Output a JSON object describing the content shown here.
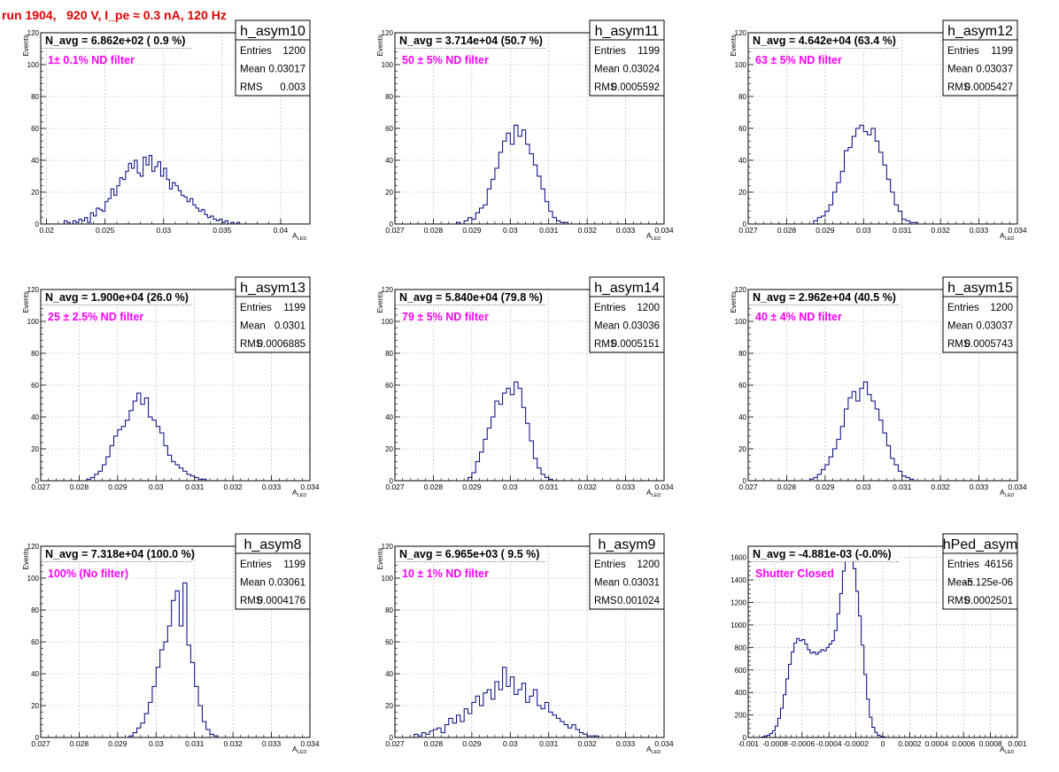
{
  "page": {
    "title": "run 1904,   920 V, I_pe ≈ 0.3 nA, 120 Hz",
    "title_color": "#e00000",
    "hist_color": "#000080",
    "note_color": "#ff00ff"
  },
  "chart_data": [
    {
      "type": "histogram",
      "name": "h_asym10",
      "headline": "N_avg = 6.862e+02 ( 0.9 %)",
      "note": "1± 0.1% ND filter",
      "stats": [
        [
          "Entries",
          "1200"
        ],
        [
          "Mean",
          "0.03017"
        ],
        [
          "RMS",
          "0.003"
        ]
      ],
      "xlabel": "A_LED",
      "ylabel": "Events",
      "xlim": [
        0.0195,
        0.0425
      ],
      "ylim": [
        0,
        120
      ],
      "xticks": [
        0.02,
        0.025,
        0.03,
        0.035,
        0.04
      ],
      "xticklabels": [
        "0.02",
        "0.025",
        "0.03",
        "0.035",
        "0.04"
      ],
      "yticks": [
        0,
        20,
        40,
        60,
        80,
        100,
        120
      ],
      "grid": true,
      "bins": {
        "start": 0.021,
        "width": 0.00025,
        "counts": [
          0,
          0,
          2,
          1,
          0,
          2,
          1,
          3,
          2,
          4,
          1,
          7,
          5,
          10,
          9,
          8,
          14,
          16,
          22,
          18,
          24,
          29,
          28,
          33,
          38,
          35,
          40,
          32,
          30,
          42,
          37,
          43,
          33,
          36,
          39,
          30,
          35,
          28,
          22,
          26,
          24,
          21,
          18,
          17,
          14,
          16,
          12,
          10,
          8,
          9,
          6,
          4,
          5,
          3,
          2,
          3,
          1,
          2,
          0,
          1,
          0,
          1
        ]
      }
    },
    {
      "type": "histogram",
      "name": "h_asym11",
      "headline": "N_avg = 3.714e+04 (50.7 %)",
      "note": "50 ± 5% ND filter",
      "stats": [
        [
          "Entries",
          "1199"
        ],
        [
          "Mean",
          "0.03024"
        ],
        [
          "RMS",
          "0.0005592"
        ]
      ],
      "xlabel": "A_LED",
      "ylabel": "Events",
      "xlim": [
        0.027,
        0.034
      ],
      "ylim": [
        0,
        120
      ],
      "xticks": [
        0.027,
        0.028,
        0.029,
        0.03,
        0.031,
        0.032,
        0.033,
        0.034
      ],
      "xticklabels": [
        "0.027",
        "0.028",
        "0.029",
        "0.03",
        "0.031",
        "0.032",
        "0.033",
        "0.034"
      ],
      "yticks": [
        0,
        20,
        40,
        60,
        80,
        100,
        120
      ],
      "grid": true,
      "bins": {
        "start": 0.0286,
        "width": 0.0001,
        "counts": [
          1,
          0,
          2,
          4,
          3,
          7,
          10,
          12,
          22,
          28,
          35,
          45,
          52,
          57,
          50,
          62,
          55,
          59,
          50,
          44,
          37,
          30,
          22,
          14,
          8,
          4,
          2,
          1,
          1
        ]
      }
    },
    {
      "type": "histogram",
      "name": "h_asym12",
      "headline": "N_avg = 4.642e+04 (63.4 %)",
      "note": "63 ± 5% ND filter",
      "stats": [
        [
          "Entries",
          "1199"
        ],
        [
          "Mean",
          "0.03037"
        ],
        [
          "RMS",
          "0.0005427"
        ]
      ],
      "xlabel": "A_LED",
      "ylabel": "Events",
      "xlim": [
        0.027,
        0.034
      ],
      "ylim": [
        0,
        120
      ],
      "xticks": [
        0.027,
        0.028,
        0.029,
        0.03,
        0.031,
        0.032,
        0.033,
        0.034
      ],
      "xticklabels": [
        "0.027",
        "0.028",
        "0.029",
        "0.03",
        "0.031",
        "0.032",
        "0.033",
        "0.034"
      ],
      "yticks": [
        0,
        20,
        40,
        60,
        80,
        100,
        120
      ],
      "grid": true,
      "bins": {
        "start": 0.0287,
        "width": 0.0001,
        "counts": [
          2,
          4,
          5,
          8,
          12,
          20,
          26,
          33,
          46,
          48,
          55,
          60,
          62,
          58,
          56,
          60,
          52,
          45,
          37,
          28,
          20,
          12,
          8,
          3,
          2,
          1,
          1
        ]
      }
    },
    {
      "type": "histogram",
      "name": "h_asym13",
      "headline": "N_avg = 1.900e+04 (26.0 %)",
      "note": "25 ± 2.5% ND filter",
      "stats": [
        [
          "Entries",
          "1199"
        ],
        [
          "Mean",
          "0.0301"
        ],
        [
          "RMS",
          "0.0006885"
        ]
      ],
      "xlabel": "A_LED",
      "ylabel": "Events",
      "xlim": [
        0.027,
        0.034
      ],
      "ylim": [
        0,
        120
      ],
      "xticks": [
        0.027,
        0.028,
        0.029,
        0.03,
        0.031,
        0.032,
        0.033,
        0.034
      ],
      "xticklabels": [
        "0.027",
        "0.028",
        "0.029",
        "0.03",
        "0.031",
        "0.032",
        "0.033",
        "0.034"
      ],
      "yticks": [
        0,
        20,
        40,
        60,
        80,
        100,
        120
      ],
      "grid": true,
      "bins": {
        "start": 0.0282,
        "width": 0.0001,
        "counts": [
          1,
          2,
          4,
          6,
          10,
          15,
          22,
          28,
          32,
          34,
          38,
          44,
          50,
          55,
          48,
          52,
          40,
          38,
          34,
          30,
          22,
          16,
          12,
          10,
          8,
          6,
          4,
          3,
          2,
          1,
          1
        ]
      }
    },
    {
      "type": "histogram",
      "name": "h_asym14",
      "headline": "N_avg = 5.840e+04 (79.8 %)",
      "note": "79 ± 5% ND filter",
      "stats": [
        [
          "Entries",
          "1200"
        ],
        [
          "Mean",
          "0.03036"
        ],
        [
          "RMS",
          "0.0005151"
        ]
      ],
      "xlabel": "A_LED",
      "ylabel": "Events",
      "xlim": [
        0.027,
        0.034
      ],
      "ylim": [
        0,
        120
      ],
      "xticks": [
        0.027,
        0.028,
        0.029,
        0.03,
        0.031,
        0.032,
        0.033,
        0.034
      ],
      "xticklabels": [
        "0.027",
        "0.028",
        "0.029",
        "0.03",
        "0.031",
        "0.032",
        "0.033",
        "0.034"
      ],
      "yticks": [
        0,
        20,
        40,
        60,
        80,
        100,
        120
      ],
      "grid": true,
      "bins": {
        "start": 0.0289,
        "width": 0.0001,
        "counts": [
          2,
          5,
          12,
          18,
          26,
          33,
          40,
          50,
          48,
          55,
          58,
          54,
          62,
          58,
          46,
          36,
          25,
          14,
          8,
          4,
          2,
          1
        ]
      }
    },
    {
      "type": "histogram",
      "name": "h_asym15",
      "headline": "N_avg = 2.962e+04 (40.5 %)",
      "note": "40 ± 4% ND filter",
      "stats": [
        [
          "Entries",
          "1200"
        ],
        [
          "Mean",
          "0.03037"
        ],
        [
          "RMS",
          "0.0005743"
        ]
      ],
      "xlabel": "A_LED",
      "ylabel": "Events",
      "xlim": [
        0.027,
        0.034
      ],
      "ylim": [
        0,
        120
      ],
      "xticks": [
        0.027,
        0.028,
        0.029,
        0.03,
        0.031,
        0.032,
        0.033,
        0.034
      ],
      "xticklabels": [
        "0.027",
        "0.028",
        "0.029",
        "0.03",
        "0.031",
        "0.032",
        "0.033",
        "0.034"
      ],
      "yticks": [
        0,
        20,
        40,
        60,
        80,
        100,
        120
      ],
      "grid": true,
      "bins": {
        "start": 0.0286,
        "width": 0.0001,
        "counts": [
          1,
          2,
          4,
          7,
          10,
          15,
          20,
          26,
          34,
          45,
          52,
          56,
          50,
          58,
          62,
          54,
          50,
          45,
          38,
          30,
          22,
          14,
          10,
          6,
          3,
          2,
          1
        ]
      }
    },
    {
      "type": "histogram",
      "name": "h_asym8",
      "headline": "N_avg = 7.318e+04 (100.0 %)",
      "note": "100% (No filter)",
      "stats": [
        [
          "Entries",
          "1199"
        ],
        [
          "Mean",
          "0.03061"
        ],
        [
          "RMS",
          "0.0004176"
        ]
      ],
      "xlabel": "A_LED",
      "ylabel": "Events",
      "xlim": [
        0.027,
        0.034
      ],
      "ylim": [
        0,
        120
      ],
      "xticks": [
        0.027,
        0.028,
        0.029,
        0.03,
        0.031,
        0.032,
        0.033,
        0.034
      ],
      "xticklabels": [
        "0.027",
        "0.028",
        "0.029",
        "0.03",
        "0.031",
        "0.032",
        "0.033",
        "0.034"
      ],
      "yticks": [
        0,
        20,
        40,
        60,
        80,
        100,
        120
      ],
      "grid": true,
      "bins": {
        "start": 0.0293,
        "width": 0.0001,
        "counts": [
          1,
          3,
          6,
          9,
          15,
          22,
          32,
          44,
          55,
          60,
          70,
          86,
          92,
          70,
          97,
          58,
          47,
          32,
          20,
          10,
          5,
          2,
          1
        ]
      }
    },
    {
      "type": "histogram",
      "name": "h_asym9",
      "headline": "N_avg = 6.965e+03 ( 9.5 %)",
      "note": "10 ± 1% ND filter",
      "stats": [
        [
          "Entries",
          "1200"
        ],
        [
          "Mean",
          "0.03031"
        ],
        [
          "RMS",
          "0.001024"
        ]
      ],
      "xlabel": "A_LED",
      "ylabel": "Events",
      "xlim": [
        0.027,
        0.034
      ],
      "ylim": [
        0,
        120
      ],
      "xticks": [
        0.027,
        0.028,
        0.029,
        0.03,
        0.031,
        0.032,
        0.033,
        0.034
      ],
      "xticklabels": [
        "0.027",
        "0.028",
        "0.029",
        "0.03",
        "0.031",
        "0.032",
        "0.033",
        "0.034"
      ],
      "yticks": [
        0,
        20,
        40,
        60,
        80,
        100,
        120
      ],
      "grid": true,
      "bins": {
        "start": 0.0274,
        "width": 0.0001,
        "counts": [
          0,
          2,
          1,
          3,
          2,
          4,
          5,
          6,
          3,
          8,
          12,
          9,
          14,
          10,
          18,
          15,
          22,
          26,
          20,
          28,
          30,
          24,
          35,
          30,
          44,
          32,
          38,
          27,
          30,
          34,
          22,
          26,
          30,
          20,
          18,
          22,
          16,
          14,
          12,
          10,
          8,
          6,
          8,
          5,
          3,
          2,
          1,
          1,
          1
        ]
      }
    },
    {
      "type": "histogram",
      "name": "hPed_asym",
      "headline": "N_avg = -4.881e-03 (-0.0%)",
      "note": "Shutter Closed",
      "stats": [
        [
          "Entries",
          "46156"
        ],
        [
          "Mean",
          "-5.125e-06"
        ],
        [
          "RMS",
          "0.0002501"
        ]
      ],
      "xlabel": "A_LED",
      "ylabel": "",
      "xlim": [
        -0.001,
        0.001
      ],
      "ylim": [
        0,
        1700
      ],
      "xticks": [
        -0.001,
        -0.0008,
        -0.0006,
        -0.0004,
        -0.0002,
        0,
        0.0002,
        0.0004,
        0.0006,
        0.0008,
        0.001
      ],
      "xticklabels": [
        "-0.001",
        "-0.0008",
        "-0.0006",
        "-0.0004",
        "-0.0002",
        "0",
        "0.0002",
        "0.0004",
        "0.0006",
        "0.0008",
        "0.001"
      ],
      "yticks": [
        0,
        200,
        400,
        600,
        800,
        1000,
        1200,
        1400,
        1600
      ],
      "grid": true,
      "bins": {
        "start": -0.0009,
        "width": 2e-05,
        "counts": [
          5,
          10,
          20,
          35,
          60,
          100,
          170,
          260,
          380,
          520,
          650,
          760,
          840,
          880,
          860,
          870,
          830,
          780,
          750,
          760,
          740,
          760,
          780,
          770,
          800,
          830,
          860,
          950,
          1100,
          1280,
          1480,
          1600,
          1650,
          1620,
          1500,
          1300,
          1080,
          820,
          560,
          340,
          180,
          90,
          45,
          20,
          10,
          5
        ]
      }
    }
  ]
}
